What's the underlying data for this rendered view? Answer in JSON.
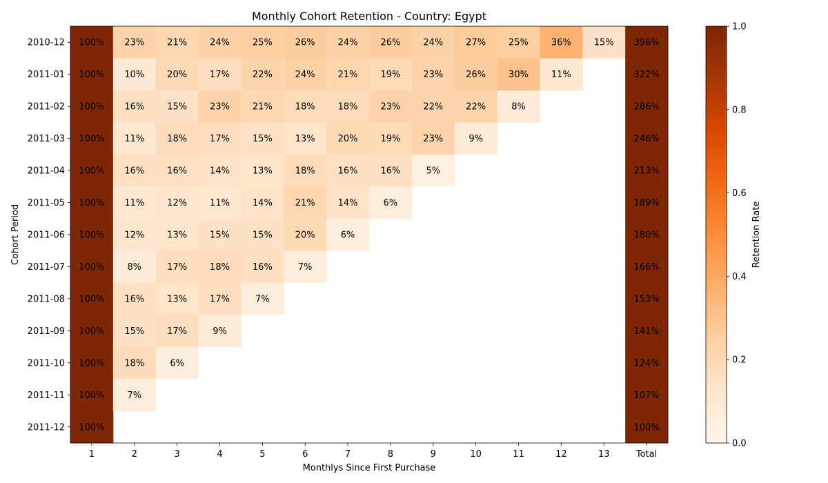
{
  "chart_data": {
    "type": "heatmap",
    "title": "Monthly Cohort Retention - Country: Egypt",
    "xlabel": "Monthlys Since First Purchase",
    "ylabel": "Cohort Period",
    "columns": [
      "1",
      "2",
      "3",
      "4",
      "5",
      "6",
      "7",
      "8",
      "9",
      "10",
      "11",
      "12",
      "13",
      "Total"
    ],
    "rows": [
      "2010-12",
      "2011-01",
      "2011-02",
      "2011-03",
      "2011-04",
      "2011-05",
      "2011-06",
      "2011-07",
      "2011-08",
      "2011-09",
      "2011-10",
      "2011-11",
      "2011-12"
    ],
    "values": [
      [
        1.0,
        0.23,
        0.21,
        0.24,
        0.25,
        0.26,
        0.24,
        0.26,
        0.24,
        0.27,
        0.25,
        0.36,
        0.15,
        3.96
      ],
      [
        1.0,
        0.1,
        0.2,
        0.17,
        0.22,
        0.24,
        0.21,
        0.19,
        0.23,
        0.26,
        0.3,
        0.11,
        null,
        3.22
      ],
      [
        1.0,
        0.16,
        0.15,
        0.23,
        0.21,
        0.18,
        0.18,
        0.23,
        0.22,
        0.22,
        0.08,
        null,
        null,
        2.86
      ],
      [
        1.0,
        0.11,
        0.18,
        0.17,
        0.15,
        0.13,
        0.2,
        0.19,
        0.23,
        0.09,
        null,
        null,
        null,
        2.46
      ],
      [
        1.0,
        0.16,
        0.16,
        0.14,
        0.13,
        0.18,
        0.16,
        0.16,
        0.05,
        null,
        null,
        null,
        null,
        2.13
      ],
      [
        1.0,
        0.11,
        0.12,
        0.11,
        0.14,
        0.21,
        0.14,
        0.06,
        null,
        null,
        null,
        null,
        null,
        1.89
      ],
      [
        1.0,
        0.12,
        0.13,
        0.15,
        0.15,
        0.2,
        0.06,
        null,
        null,
        null,
        null,
        null,
        null,
        1.8
      ],
      [
        1.0,
        0.08,
        0.17,
        0.18,
        0.16,
        0.07,
        null,
        null,
        null,
        null,
        null,
        null,
        null,
        1.66
      ],
      [
        1.0,
        0.16,
        0.13,
        0.17,
        0.07,
        null,
        null,
        null,
        null,
        null,
        null,
        null,
        null,
        1.53
      ],
      [
        1.0,
        0.15,
        0.17,
        0.09,
        null,
        null,
        null,
        null,
        null,
        null,
        null,
        null,
        null,
        1.41
      ],
      [
        1.0,
        0.18,
        0.06,
        null,
        null,
        null,
        null,
        null,
        null,
        null,
        null,
        null,
        null,
        1.24
      ],
      [
        1.0,
        0.07,
        null,
        null,
        null,
        null,
        null,
        null,
        null,
        null,
        null,
        null,
        null,
        1.07
      ],
      [
        1.0,
        null,
        null,
        null,
        null,
        null,
        null,
        null,
        null,
        null,
        null,
        null,
        null,
        1.0
      ]
    ],
    "colorbar": {
      "label": "Retention Rate",
      "range": [
        0,
        1
      ],
      "ticks": [
        "0.0",
        "0.2",
        "0.4",
        "0.6",
        "0.8",
        "1.0"
      ],
      "colormap": "Oranges"
    }
  }
}
